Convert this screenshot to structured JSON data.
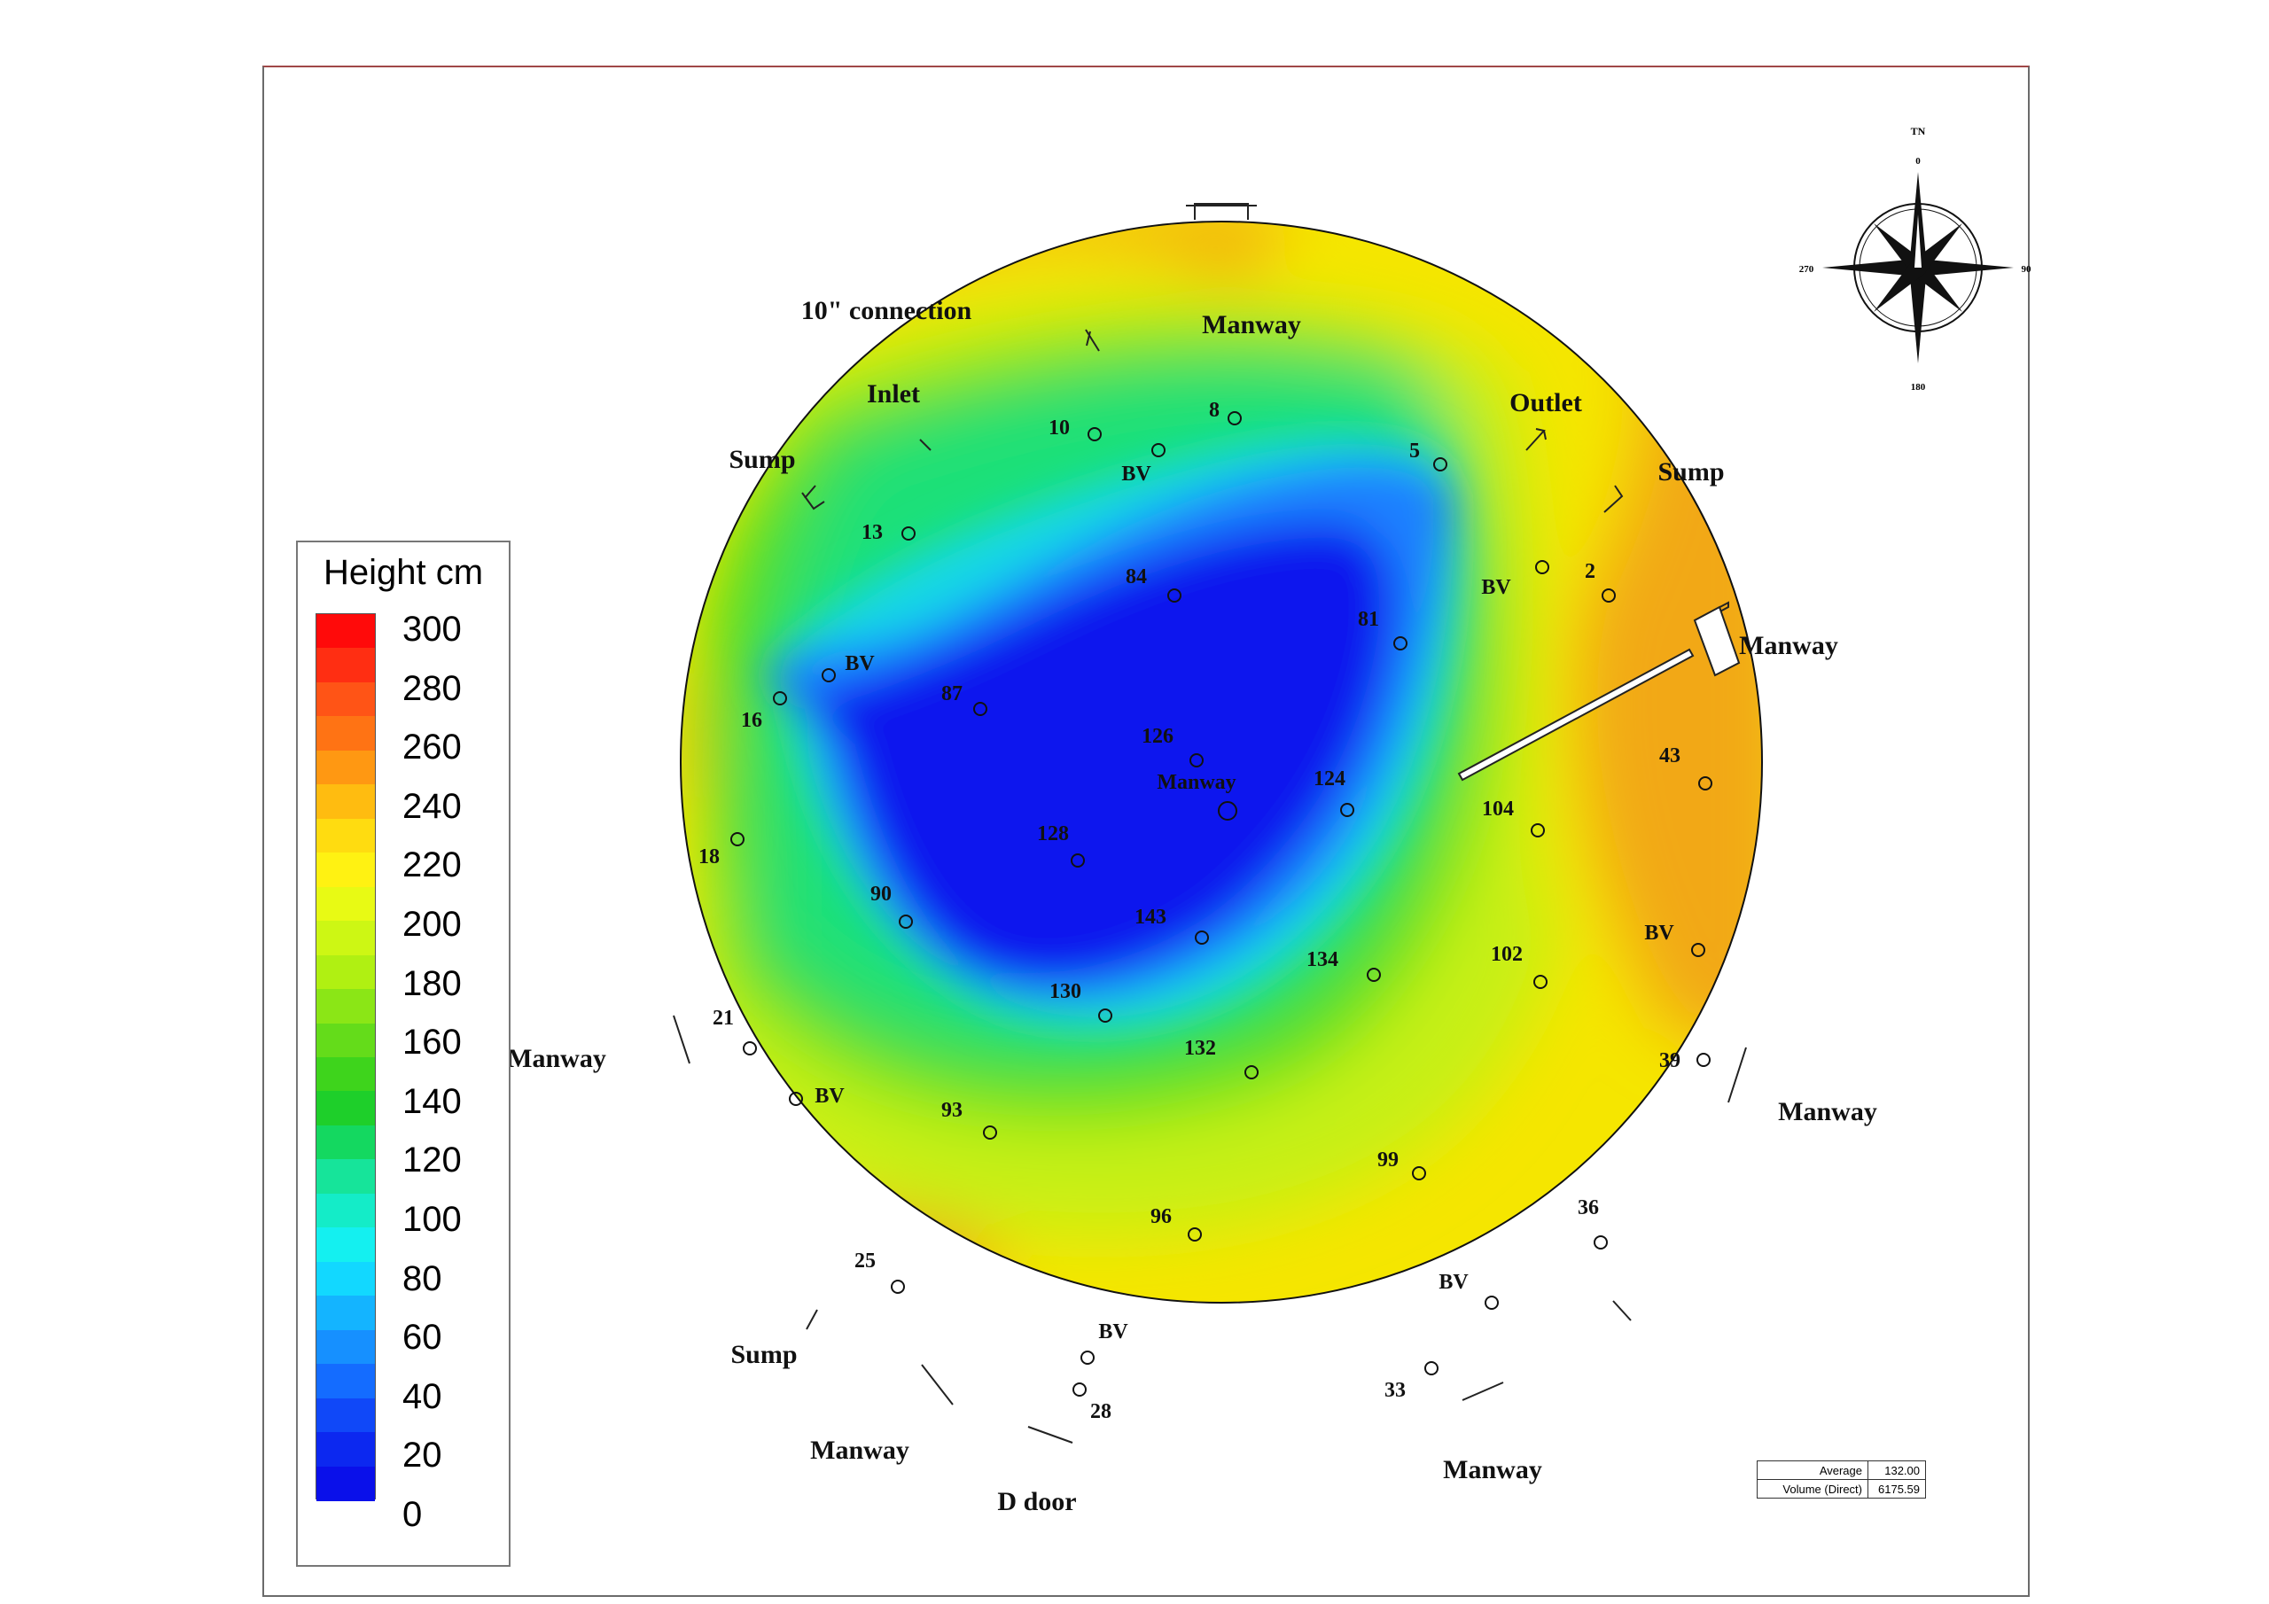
{
  "chart_data": {
    "type": "heatmap",
    "colorbar": {
      "title": "Height cm",
      "min": 0,
      "max": 300,
      "step": 20,
      "tick_labels": [
        "300",
        "280",
        "260",
        "240",
        "220",
        "200",
        "180",
        "160",
        "140",
        "120",
        "100",
        "80",
        "60",
        "40",
        "20",
        "0"
      ]
    },
    "grid": false,
    "points": [
      {
        "label": "8"
      },
      {
        "label": "10"
      },
      {
        "label": "BV"
      },
      {
        "label": "13"
      },
      {
        "label": "5"
      },
      {
        "label": "84"
      },
      {
        "label": "81"
      },
      {
        "label": "BV"
      },
      {
        "label": "2"
      },
      {
        "label": "BV"
      },
      {
        "label": "16"
      },
      {
        "label": "87"
      },
      {
        "label": "126"
      },
      {
        "label": "Manway"
      },
      {
        "label": "124"
      },
      {
        "label": "43"
      },
      {
        "label": "104"
      },
      {
        "label": "128"
      },
      {
        "label": "18"
      },
      {
        "label": "90"
      },
      {
        "label": "143"
      },
      {
        "label": "BV"
      },
      {
        "label": "134"
      },
      {
        "label": "102"
      },
      {
        "label": "130"
      },
      {
        "label": "21"
      },
      {
        "label": "132"
      },
      {
        "label": "39"
      },
      {
        "label": "BV"
      },
      {
        "label": "93"
      },
      {
        "label": "99"
      },
      {
        "label": "96"
      },
      {
        "label": "36"
      },
      {
        "label": "25"
      },
      {
        "label": "BV"
      },
      {
        "label": "BV"
      },
      {
        "label": "28"
      },
      {
        "label": "33"
      }
    ],
    "annotations": [
      "10\" connection",
      "Manway",
      "Inlet",
      "Outlet",
      "Sump",
      "Sump",
      "Manway",
      "Manway",
      "Manway",
      "Sump",
      "Manway",
      "D door",
      "Manway"
    ],
    "compass": {
      "title": "TN",
      "labels": [
        "0",
        "90",
        "180",
        "270"
      ]
    },
    "stats": [
      {
        "label": "Average",
        "value": "132.00"
      },
      {
        "label": "Volume (Direct)",
        "value": "6175.59"
      }
    ]
  }
}
